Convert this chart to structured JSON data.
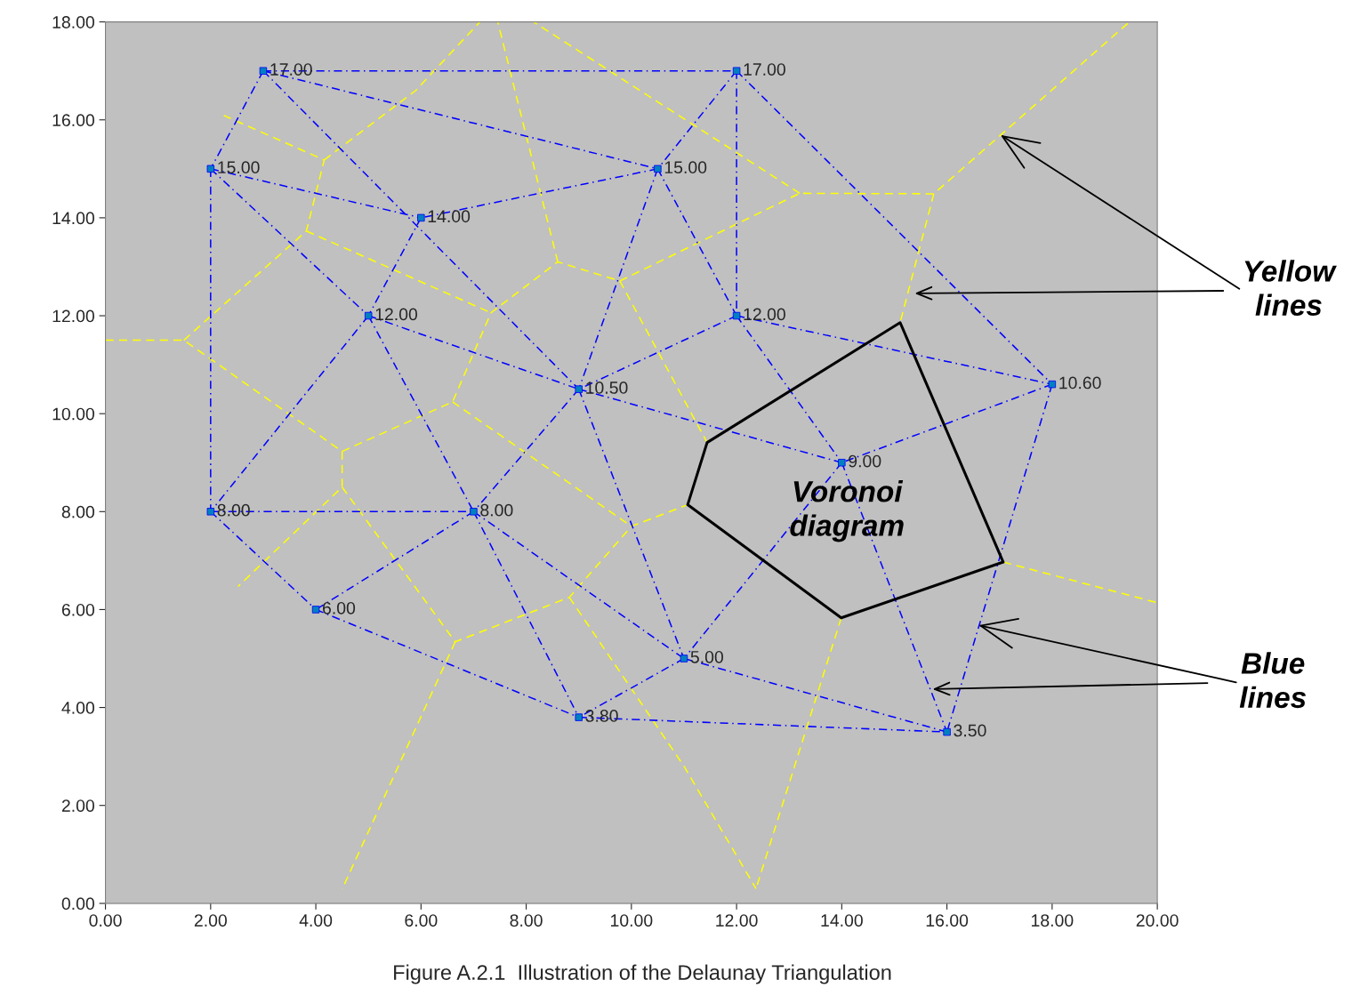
{
  "chart_data": {
    "type": "scatter",
    "xlim": [
      0,
      20
    ],
    "ylim": [
      0,
      18
    ],
    "xticks": [
      {
        "value": 0,
        "label": "0.00"
      },
      {
        "value": 2,
        "label": "2.00"
      },
      {
        "value": 4,
        "label": "4.00"
      },
      {
        "value": 6,
        "label": "6.00"
      },
      {
        "value": 8,
        "label": "8.00"
      },
      {
        "value": 10,
        "label": "10.00"
      },
      {
        "value": 12,
        "label": "12.00"
      },
      {
        "value": 14,
        "label": "14.00"
      },
      {
        "value": 16,
        "label": "16.00"
      },
      {
        "value": 18,
        "label": "18.00"
      },
      {
        "value": 20,
        "label": "20.00"
      }
    ],
    "yticks": [
      {
        "value": 0,
        "label": "0.00"
      },
      {
        "value": 2,
        "label": "2.00"
      },
      {
        "value": 4,
        "label": "4.00"
      },
      {
        "value": 6,
        "label": "6.00"
      },
      {
        "value": 8,
        "label": "8.00"
      },
      {
        "value": 10,
        "label": "10.00"
      },
      {
        "value": 12,
        "label": "12.00"
      },
      {
        "value": 14,
        "label": "14.00"
      },
      {
        "value": 16,
        "label": "16.00"
      },
      {
        "value": 18,
        "label": "18.00"
      }
    ],
    "grid": false,
    "series": [
      {
        "type": "line",
        "color": "#ffff00",
        "line_style": "dashed",
        "marker": "none",
        "x": [
          0,
          1.49,
          4.5,
          6.6,
          7.33,
          8.6,
          9.78,
          13.2,
          15.75,
          19.47,
          null,
          4.5,
          4.5,
          2.52,
          null,
          4.5,
          6.65,
          8.82,
          10.0,
          11.07,
          null,
          6.65,
          4.5,
          null,
          8.82,
          11.0,
          12.37,
          null,
          6.6,
          10.0,
          null,
          1.49,
          3.82,
          4.16,
          2.25,
          null,
          4.16,
          5.9,
          7.12,
          null,
          3.82,
          7.33,
          null,
          8.6,
          7.46,
          null,
          9.78,
          11.44,
          null,
          13.2,
          8.14,
          null,
          15.75,
          15.11,
          null,
          17.07,
          20,
          null,
          13.99,
          12.37
        ],
        "values": [
          11.5,
          11.5,
          9.23,
          10.24,
          12.06,
          13.1,
          12.71,
          14.5,
          14.49,
          18,
          null,
          9.23,
          8.5,
          6.47,
          null,
          8.5,
          5.34,
          6.25,
          7.7,
          8.14,
          null,
          5.34,
          0.29,
          null,
          6.25,
          2.8,
          0.3,
          null,
          10.24,
          7.7,
          null,
          11.5,
          13.73,
          15.18,
          16.09,
          null,
          15.18,
          16.6,
          18,
          null,
          13.73,
          12.06,
          null,
          13.1,
          18,
          null,
          12.71,
          9.41,
          null,
          14.5,
          18,
          null,
          14.49,
          11.86,
          null,
          6.97,
          6.14,
          null,
          5.83,
          0.3
        ]
      },
      {
        "type": "line",
        "color": "#0000ff",
        "line_style": "dashdot",
        "marker": "none",
        "x": [
          3,
          12,
          null,
          3,
          2,
          null,
          3,
          10.5,
          null,
          3,
          9,
          null,
          12,
          10.5,
          null,
          12,
          12,
          null,
          12,
          18,
          null,
          2,
          6,
          null,
          2,
          5,
          null,
          2,
          2,
          null,
          10.5,
          6,
          null,
          10.5,
          9,
          null,
          10.5,
          12,
          null,
          6,
          5,
          null,
          5,
          2,
          null,
          5,
          7,
          null,
          5,
          9,
          null,
          12,
          9,
          null,
          12,
          18,
          null,
          12,
          14,
          null,
          9,
          14,
          null,
          9,
          7,
          null,
          9,
          11,
          null,
          18,
          14,
          null,
          18,
          16,
          null,
          14,
          11,
          null,
          14,
          16,
          null,
          2,
          7,
          null,
          2,
          4,
          null,
          7,
          4,
          null,
          7,
          11,
          null,
          7,
          9,
          null,
          4,
          9,
          null,
          11,
          9,
          null,
          11,
          16,
          null,
          9,
          16
        ],
        "values": [
          17,
          17,
          null,
          17,
          15,
          null,
          17,
          15,
          null,
          17,
          10.5,
          null,
          17,
          15,
          null,
          17,
          12,
          null,
          17,
          10.6,
          null,
          15,
          14,
          null,
          15,
          12,
          null,
          15,
          8,
          null,
          15,
          14,
          null,
          15,
          10.5,
          null,
          15,
          12,
          null,
          14,
          12,
          null,
          12,
          8,
          null,
          12,
          8,
          null,
          12,
          10.5,
          null,
          12,
          10.5,
          null,
          12,
          10.6,
          null,
          12,
          9,
          null,
          10.5,
          9,
          null,
          10.5,
          8,
          null,
          10.5,
          5,
          null,
          10.6,
          9,
          null,
          10.6,
          3.5,
          null,
          9,
          5,
          null,
          9,
          3.5,
          null,
          8,
          8,
          null,
          8,
          6,
          null,
          8,
          6,
          null,
          8,
          5,
          null,
          8,
          3.8,
          null,
          6,
          3.8,
          null,
          5,
          3.8,
          null,
          5,
          3.5,
          null,
          3.8,
          3.5
        ]
      },
      {
        "type": "line",
        "color": "#000000",
        "line_style": "solid",
        "marker": "none",
        "x": [
          11.07,
          11.44,
          15.11,
          17.07,
          13.99,
          null,
          13.99,
          11.07
        ],
        "values": [
          8.14,
          9.41,
          11.86,
          6.97,
          5.83,
          null,
          5.83,
          8.14
        ]
      },
      {
        "color": "#0080c0",
        "marker": "square",
        "x": [
          3,
          12,
          2,
          10.5,
          6,
          5,
          12,
          9,
          18,
          14,
          2,
          7,
          4,
          11,
          9,
          16
        ],
        "values": [
          17,
          17,
          15,
          15,
          14,
          12,
          12,
          10.5,
          10.6,
          9,
          8,
          8,
          6,
          5,
          3.8,
          3.5
        ],
        "value_labels": [
          "17.00",
          "17.00",
          "15.00",
          "15.00",
          "14.00",
          "12.00",
          "12.00",
          "10.50",
          "10.60",
          "9.00",
          "8.00",
          "8.00",
          "6.00",
          "5.00",
          "3.80",
          "3.50"
        ]
      }
    ],
    "annotations": [
      {
        "text": "Yellow\nlines",
        "x": 17.02,
        "y": 15.69
      },
      {
        "text": "Blue\nlines",
        "x": 16.6,
        "y": 5.68
      },
      "Voronoi\ndiagram",
      "Figure A.2.1  Illustration of the Delaunay Triangulation"
    ]
  }
}
